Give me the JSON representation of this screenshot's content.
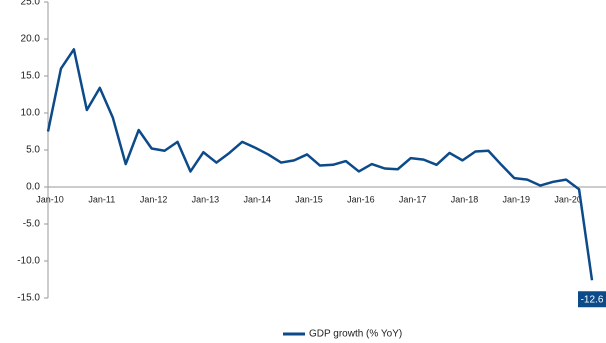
{
  "chart_data": {
    "type": "line",
    "categories": [
      "Jan-10",
      null,
      null,
      null,
      "Jan-11",
      null,
      null,
      null,
      "Jan-12",
      null,
      null,
      null,
      "Jan-13",
      null,
      null,
      null,
      "Jan-14",
      null,
      null,
      null,
      "Jan-15",
      null,
      null,
      null,
      "Jan-16",
      null,
      null,
      null,
      "Jan-17",
      null,
      null,
      null,
      "Jan-18",
      null,
      null,
      null,
      "Jan-19",
      null,
      null,
      null,
      "Jan-20",
      null,
      null
    ],
    "series": [
      {
        "name": "GDP growth (% YoY)",
        "color": "#0c4a8a",
        "values": [
          7.5,
          16.0,
          18.6,
          10.4,
          13.4,
          9.4,
          3.1,
          7.7,
          5.2,
          4.9,
          6.1,
          2.1,
          4.7,
          3.3,
          4.6,
          6.1,
          5.3,
          4.4,
          3.3,
          3.6,
          4.4,
          2.9,
          3.0,
          3.5,
          2.1,
          3.1,
          2.5,
          2.4,
          3.9,
          3.7,
          3.0,
          4.6,
          3.6,
          4.8,
          4.9,
          3.0,
          1.2,
          1.0,
          0.2,
          0.7,
          1.0,
          -0.3,
          -12.6
        ],
        "value_labels": [
          null,
          null,
          null,
          null,
          null,
          null,
          null,
          null,
          null,
          null,
          null,
          null,
          null,
          null,
          null,
          null,
          null,
          null,
          null,
          null,
          null,
          null,
          null,
          null,
          null,
          null,
          null,
          null,
          null,
          null,
          null,
          null,
          null,
          null,
          null,
          null,
          null,
          null,
          null,
          null,
          null,
          null,
          "-12.6"
        ]
      }
    ],
    "ylim": [
      -15,
      25
    ],
    "yticks": [
      {
        "value": -15,
        "label": "-15.0"
      },
      {
        "value": -10,
        "label": "-10.0"
      },
      {
        "value": -5,
        "label": "-5.0"
      },
      {
        "value": 0,
        "label": "0.0"
      },
      {
        "value": 5,
        "label": "5.0"
      },
      {
        "value": 10,
        "label": "10.0"
      },
      {
        "value": 15,
        "label": "15.0"
      },
      {
        "value": 20,
        "label": "20.0"
      },
      {
        "value": 25,
        "label": "25.0"
      }
    ],
    "legend": "bottom"
  }
}
